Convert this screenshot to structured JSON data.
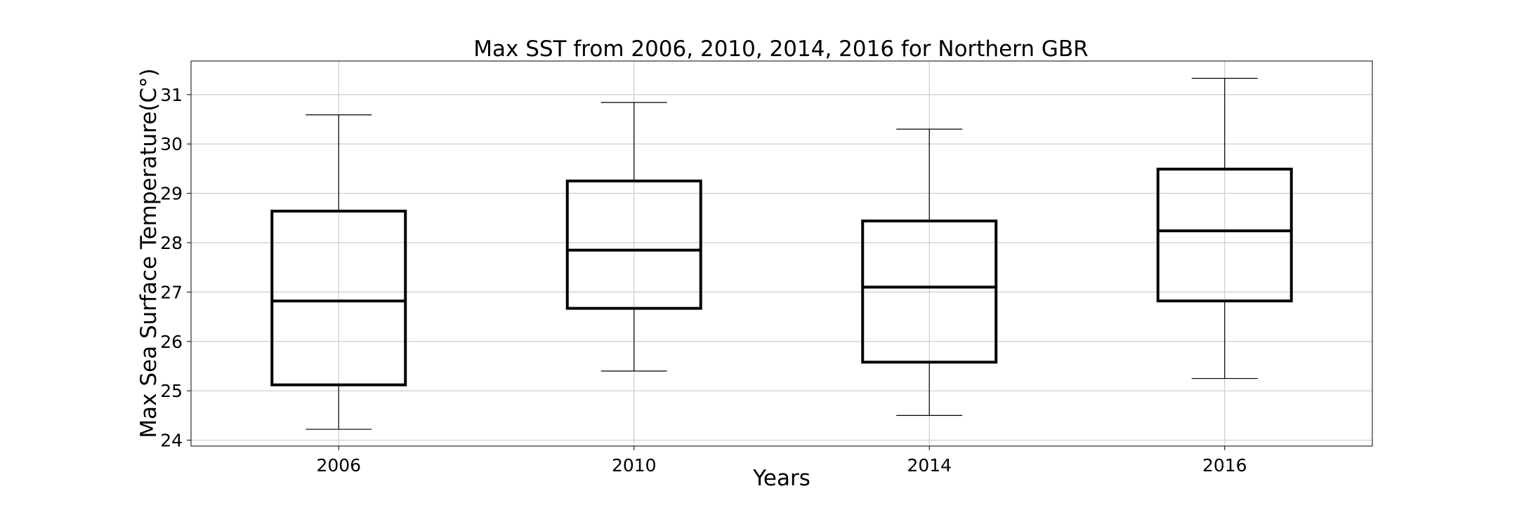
{
  "chart_data": {
    "type": "box",
    "title": "Max SST from 2006, 2010, 2014, 2016 for Northern GBR",
    "xlabel": "Years",
    "ylabel": "Max Sea Surface Temperature(C°)",
    "categories": [
      "2006",
      "2010",
      "2014",
      "2016"
    ],
    "boxes": [
      {
        "category": "2006",
        "whisker_low": 24.22,
        "q1": 25.12,
        "median": 26.82,
        "q3": 28.64,
        "whisker_high": 30.59
      },
      {
        "category": "2010",
        "whisker_low": 25.4,
        "q1": 26.67,
        "median": 27.85,
        "q3": 29.25,
        "whisker_high": 30.84
      },
      {
        "category": "2014",
        "whisker_low": 24.5,
        "q1": 25.58,
        "median": 27.1,
        "q3": 28.44,
        "whisker_high": 30.3
      },
      {
        "category": "2016",
        "whisker_low": 25.25,
        "q1": 26.82,
        "median": 28.24,
        "q3": 29.49,
        "whisker_high": 31.33
      }
    ],
    "yticks": [
      24,
      25,
      26,
      27,
      28,
      29,
      30,
      31
    ],
    "ylim": [
      23.88,
      31.68
    ],
    "grid": true,
    "colors": {
      "box": "#000000",
      "whisker": "#000000",
      "grid": "#cccccc",
      "frame": "#000000"
    }
  }
}
